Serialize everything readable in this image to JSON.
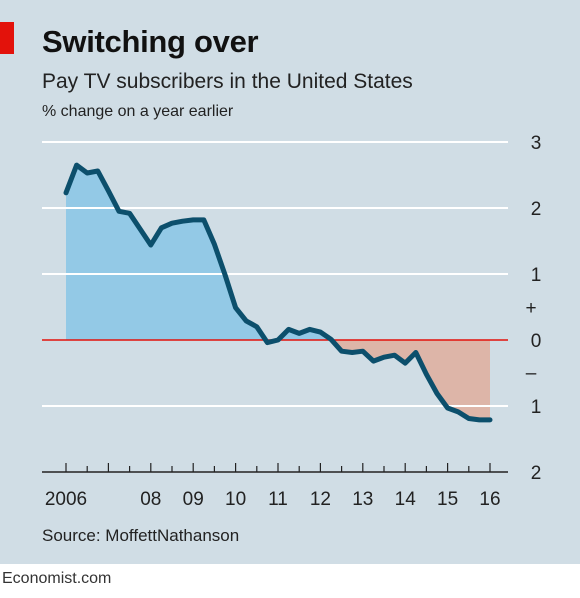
{
  "header": {
    "title": "Switching over",
    "subtitle": "Pay TV subscribers in the United States",
    "unit": "% change on a year earlier"
  },
  "source": "Source: MoffettNathanson",
  "footer": "Economist.com",
  "colors": {
    "line": "#0c4f6c",
    "positive_fill": "#93c9e6",
    "negative_fill": "#ddb5a8",
    "zero_line": "#e3120b",
    "grid": "#ffffff",
    "panel": "#d0dde5",
    "brand": "#e3120b"
  },
  "chart_data": {
    "type": "area",
    "y_ticks": [
      {
        "value": 3,
        "label": "3"
      },
      {
        "value": 2,
        "label": "2"
      },
      {
        "value": 1,
        "label": "1"
      },
      {
        "value": 0,
        "label": "0"
      },
      {
        "value": -1,
        "label": "1"
      },
      {
        "value": -2,
        "label": "2"
      }
    ],
    "sign_labels": {
      "plus": "+",
      "minus": "–"
    },
    "ylim": [
      -2,
      3
    ],
    "xlim": [
      2006,
      2016.1
    ],
    "x_ticks": [
      {
        "value": 2006,
        "label": "2006"
      },
      {
        "value": 2008,
        "label": "08"
      },
      {
        "value": 2009,
        "label": "09"
      },
      {
        "value": 2010,
        "label": "10"
      },
      {
        "value": 2011,
        "label": "11"
      },
      {
        "value": 2012,
        "label": "12"
      },
      {
        "value": 2013,
        "label": "13"
      },
      {
        "value": 2014,
        "label": "14"
      },
      {
        "value": 2015,
        "label": "15"
      },
      {
        "value": 2016,
        "label": "16"
      }
    ],
    "grid": true,
    "series": [
      {
        "x": [
          2006.0,
          2006.25,
          2006.5,
          2006.75,
          2007.0,
          2007.25,
          2007.5,
          2007.75,
          2008.0,
          2008.25,
          2008.5,
          2008.75,
          2009.0,
          2009.25,
          2009.5,
          2009.75,
          2010.0,
          2010.25,
          2010.5,
          2010.75,
          2011.0,
          2011.25,
          2011.5,
          2011.75,
          2012.0,
          2012.25,
          2012.5,
          2012.75,
          2013.0,
          2013.25,
          2013.5,
          2013.75,
          2014.0,
          2014.25,
          2014.5,
          2014.75,
          2015.0,
          2015.25,
          2015.5,
          2015.75,
          2016.0
        ],
        "y": [
          2.23,
          2.65,
          2.53,
          2.56,
          2.26,
          1.95,
          1.92,
          1.68,
          1.44,
          1.7,
          1.77,
          1.8,
          1.82,
          1.82,
          1.45,
          0.99,
          0.49,
          0.29,
          0.2,
          -0.04,
          0.0,
          0.16,
          0.1,
          0.16,
          0.12,
          0.01,
          -0.17,
          -0.19,
          -0.17,
          -0.32,
          -0.26,
          -0.23,
          -0.35,
          -0.19,
          -0.52,
          -0.81,
          -1.03,
          -1.09,
          -1.19,
          -1.21,
          -1.21
        ]
      }
    ]
  }
}
